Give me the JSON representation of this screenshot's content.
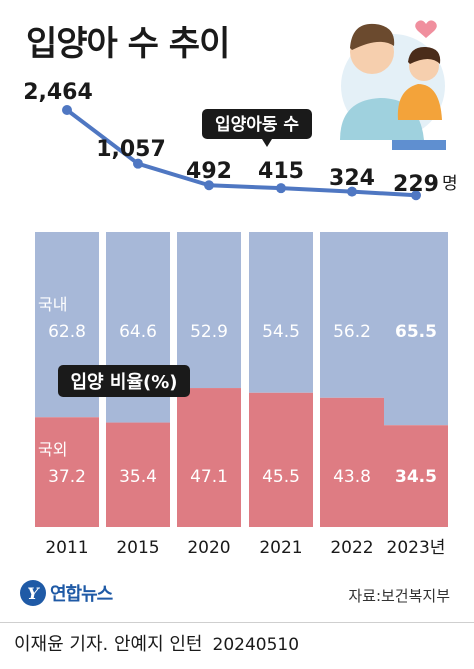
{
  "title": "입양아 수 추이",
  "chart_data": [
    {
      "type": "line",
      "series": [
        {
          "name": "입양아동 수",
          "values": [
            2464,
            1057,
            492,
            415,
            324,
            229
          ]
        }
      ],
      "categories": [
        "2011",
        "2015",
        "2020",
        "2021",
        "2022",
        "2023"
      ],
      "value_labels": [
        "2,464",
        "1,057",
        "492",
        "415",
        "324",
        "229"
      ],
      "unit": "명",
      "color": "#4f77c2"
    },
    {
      "type": "bar",
      "stacked": true,
      "title": "입양 비율(%)",
      "categories": [
        "2011",
        "2015",
        "2020",
        "2021",
        "2022",
        "2023년"
      ],
      "series": [
        {
          "name": "국내",
          "values": [
            62.8,
            64.6,
            52.9,
            54.5,
            56.2,
            65.5
          ],
          "labels": [
            "62.8",
            "64.6",
            "52.9",
            "54.5",
            "56.2",
            "65.5"
          ],
          "color": "#a7b8d8"
        },
        {
          "name": "국외",
          "values": [
            37.2,
            35.4,
            47.1,
            45.5,
            43.8,
            34.5
          ],
          "labels": [
            "37.2",
            "35.4",
            "47.1",
            "45.5",
            "43.8",
            "34.5"
          ],
          "color": "#de7c83"
        }
      ],
      "ylim": [
        0,
        100
      ]
    }
  ],
  "footer": {
    "logo": "연합뉴스",
    "logo_mark": "Y",
    "source": "자료:보건복지부",
    "credit": "이재윤 기자. 안예지 인턴",
    "date": "20240510"
  }
}
